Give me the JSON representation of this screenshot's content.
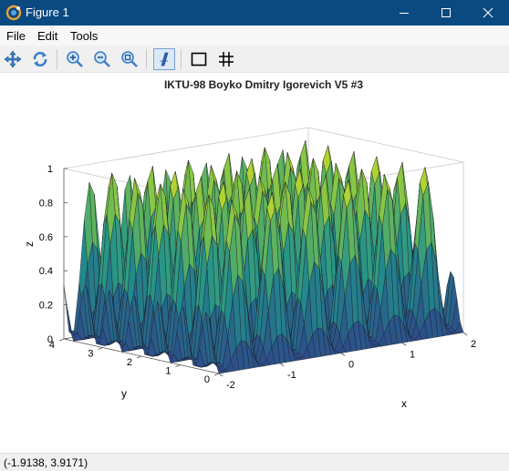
{
  "window": {
    "title": "Figure 1"
  },
  "menu": {
    "items": [
      "File",
      "Edit",
      "Tools"
    ]
  },
  "toolbar": {
    "tools": [
      "pan-icon",
      "rotate-icon",
      "zoom-in-icon",
      "zoom-out-icon",
      "zoom-reset-icon",
      "text-icon",
      "box-icon",
      "grid-icon"
    ]
  },
  "status": {
    "coords": "(-1.9138, 3.9171)"
  },
  "colors": {
    "titlebar": "#0a4a80",
    "surface_low": "#2d4a8a",
    "surface_mid": "#21918c",
    "surface_high": "#e8e51c"
  },
  "chart_data": {
    "type": "surface",
    "title": "IKTU-98 Boyko Dmitry Igorevich V5 #3",
    "xlabel": "x",
    "ylabel": "y",
    "zlabel": "z",
    "xlim": [
      -2,
      2
    ],
    "ylim": [
      0,
      4
    ],
    "zlim": [
      0,
      1
    ],
    "x_ticks": [
      "-2",
      "-1",
      "0",
      "1",
      "2"
    ],
    "y_ticks": [
      "0",
      "1",
      "2",
      "3",
      "4"
    ],
    "z_ticks": [
      "0",
      "0.2",
      "0.4",
      "0.6",
      "0.8",
      "1"
    ],
    "grid": false
  }
}
